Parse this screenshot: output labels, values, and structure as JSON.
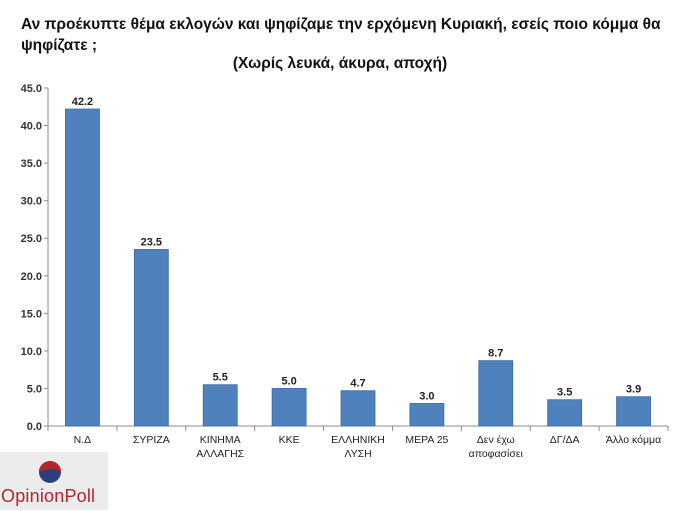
{
  "header": {
    "title": "Αν προέκυπτε θέμα εκλογών και ψηφίζαμε την ερχόμενη Κυριακή, εσείς ποιο κόμμα θα ψηφίζατε ;",
    "subtitle": "(Χωρίς λευκά, άκυρα, αποχή)"
  },
  "logo": {
    "text": "OpinionPoll",
    "icon": "opinionpoll-logo-icon"
  },
  "colors": {
    "bar": "#4f81bd",
    "bar_edge": "#3a6aa5",
    "axis": "#8c8c8c",
    "text": "#111111",
    "logo_red": "#b5262b",
    "logo_blue": "#2e3f7c"
  },
  "chart_data": {
    "type": "bar",
    "title": "",
    "xlabel": "",
    "ylabel": "",
    "ylim": [
      0,
      45
    ],
    "yticks": [
      "0.0",
      "5.0",
      "10.0",
      "15.0",
      "20.0",
      "25.0",
      "30.0",
      "35.0",
      "40.0",
      "45.0"
    ],
    "grid": false,
    "categories": [
      [
        "Ν.Δ"
      ],
      [
        "ΣΥΡΙΖΑ"
      ],
      [
        "ΚΙΝΗΜΑ",
        "ΑΛΛΑΓΗΣ"
      ],
      [
        "ΚΚΕ"
      ],
      [
        "ΕΛΛΗΝΙΚΗ",
        "ΛΥΣΗ"
      ],
      [
        "ΜΕΡΑ 25"
      ],
      [
        "Δεν έχω",
        "αποφασίσει"
      ],
      [
        "ΔΓ/ΔΑ"
      ],
      [
        "Άλλο κόμμα"
      ]
    ],
    "values": [
      42.2,
      23.5,
      5.5,
      5.0,
      4.7,
      3.0,
      8.7,
      3.5,
      3.9
    ],
    "labels": [
      "42.2",
      "23.5",
      "5.5",
      "5.0",
      "4.7",
      "3.0",
      "8.7",
      "3.5",
      "3.9"
    ]
  }
}
